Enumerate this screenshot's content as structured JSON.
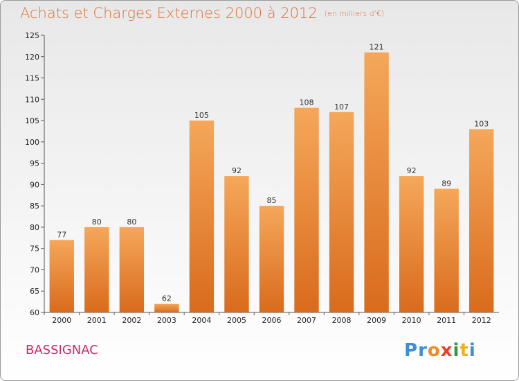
{
  "chart_data": {
    "type": "bar",
    "title": "Achats et Charges Externes 2000 à 2012",
    "subtitle": "(en milliers d'€)",
    "categories": [
      "2000",
      "2001",
      "2002",
      "2003",
      "2004",
      "2005",
      "2006",
      "2007",
      "2008",
      "2009",
      "2010",
      "2011",
      "2012"
    ],
    "values": [
      77,
      80,
      80,
      62,
      105,
      92,
      85,
      108,
      107,
      121,
      92,
      89,
      103
    ],
    "ylim": [
      60,
      125
    ],
    "yticks": [
      60,
      65,
      70,
      75,
      80,
      85,
      90,
      95,
      100,
      105,
      110,
      115,
      120,
      125
    ],
    "xlabel": "",
    "ylabel": "",
    "grid": false,
    "bar_color": "#ee8a3a"
  },
  "commune": "BASSIGNAC",
  "logo": {
    "text": "Proxiti",
    "letter_colors": [
      "#3b8fd6",
      "#3b8fd6",
      "#f08a24",
      "#e8402c",
      "#2e9a3b",
      "#f0b020",
      "#3b8fd6"
    ]
  }
}
